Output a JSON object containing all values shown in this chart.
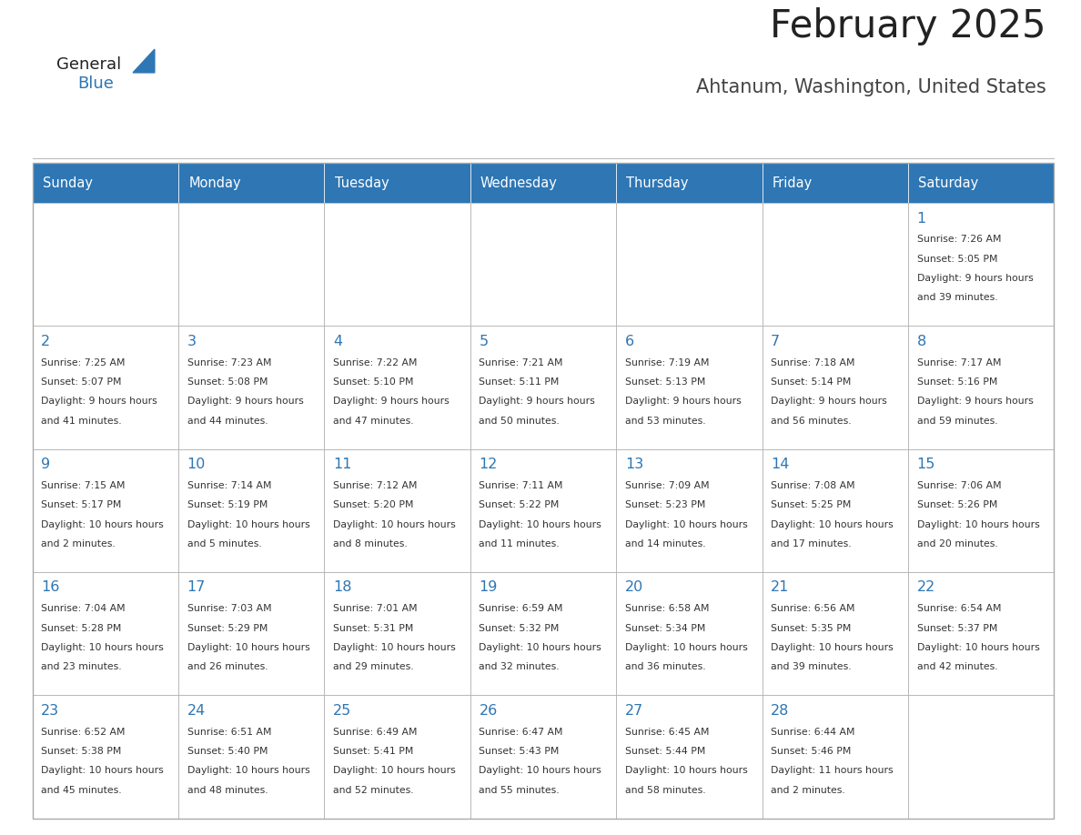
{
  "title": "February 2025",
  "subtitle": "Ahtanum, Washington, United States",
  "days_of_week": [
    "Sunday",
    "Monday",
    "Tuesday",
    "Wednesday",
    "Thursday",
    "Friday",
    "Saturday"
  ],
  "header_bg": "#2E76B4",
  "header_text": "#FFFFFF",
  "cell_bg": "#FFFFFF",
  "cell_border": "#AAAAAA",
  "day_number_color": "#2E76B4",
  "info_text_color": "#333333",
  "title_color": "#222222",
  "subtitle_color": "#444444",
  "general_blue_color": "#2E76B4",
  "logo_text_color": "#222222",
  "calendar_data": [
    [
      null,
      null,
      null,
      null,
      null,
      null,
      {
        "day": 1,
        "sunrise": "7:26 AM",
        "sunset": "5:05 PM",
        "daylight": "9 hours and 39 minutes."
      }
    ],
    [
      {
        "day": 2,
        "sunrise": "7:25 AM",
        "sunset": "5:07 PM",
        "daylight": "9 hours and 41 minutes."
      },
      {
        "day": 3,
        "sunrise": "7:23 AM",
        "sunset": "5:08 PM",
        "daylight": "9 hours and 44 minutes."
      },
      {
        "day": 4,
        "sunrise": "7:22 AM",
        "sunset": "5:10 PM",
        "daylight": "9 hours and 47 minutes."
      },
      {
        "day": 5,
        "sunrise": "7:21 AM",
        "sunset": "5:11 PM",
        "daylight": "9 hours and 50 minutes."
      },
      {
        "day": 6,
        "sunrise": "7:19 AM",
        "sunset": "5:13 PM",
        "daylight": "9 hours and 53 minutes."
      },
      {
        "day": 7,
        "sunrise": "7:18 AM",
        "sunset": "5:14 PM",
        "daylight": "9 hours and 56 minutes."
      },
      {
        "day": 8,
        "sunrise": "7:17 AM",
        "sunset": "5:16 PM",
        "daylight": "9 hours and 59 minutes."
      }
    ],
    [
      {
        "day": 9,
        "sunrise": "7:15 AM",
        "sunset": "5:17 PM",
        "daylight": "10 hours and 2 minutes."
      },
      {
        "day": 10,
        "sunrise": "7:14 AM",
        "sunset": "5:19 PM",
        "daylight": "10 hours and 5 minutes."
      },
      {
        "day": 11,
        "sunrise": "7:12 AM",
        "sunset": "5:20 PM",
        "daylight": "10 hours and 8 minutes."
      },
      {
        "day": 12,
        "sunrise": "7:11 AM",
        "sunset": "5:22 PM",
        "daylight": "10 hours and 11 minutes."
      },
      {
        "day": 13,
        "sunrise": "7:09 AM",
        "sunset": "5:23 PM",
        "daylight": "10 hours and 14 minutes."
      },
      {
        "day": 14,
        "sunrise": "7:08 AM",
        "sunset": "5:25 PM",
        "daylight": "10 hours and 17 minutes."
      },
      {
        "day": 15,
        "sunrise": "7:06 AM",
        "sunset": "5:26 PM",
        "daylight": "10 hours and 20 minutes."
      }
    ],
    [
      {
        "day": 16,
        "sunrise": "7:04 AM",
        "sunset": "5:28 PM",
        "daylight": "10 hours and 23 minutes."
      },
      {
        "day": 17,
        "sunrise": "7:03 AM",
        "sunset": "5:29 PM",
        "daylight": "10 hours and 26 minutes."
      },
      {
        "day": 18,
        "sunrise": "7:01 AM",
        "sunset": "5:31 PM",
        "daylight": "10 hours and 29 minutes."
      },
      {
        "day": 19,
        "sunrise": "6:59 AM",
        "sunset": "5:32 PM",
        "daylight": "10 hours and 32 minutes."
      },
      {
        "day": 20,
        "sunrise": "6:58 AM",
        "sunset": "5:34 PM",
        "daylight": "10 hours and 36 minutes."
      },
      {
        "day": 21,
        "sunrise": "6:56 AM",
        "sunset": "5:35 PM",
        "daylight": "10 hours and 39 minutes."
      },
      {
        "day": 22,
        "sunrise": "6:54 AM",
        "sunset": "5:37 PM",
        "daylight": "10 hours and 42 minutes."
      }
    ],
    [
      {
        "day": 23,
        "sunrise": "6:52 AM",
        "sunset": "5:38 PM",
        "daylight": "10 hours and 45 minutes."
      },
      {
        "day": 24,
        "sunrise": "6:51 AM",
        "sunset": "5:40 PM",
        "daylight": "10 hours and 48 minutes."
      },
      {
        "day": 25,
        "sunrise": "6:49 AM",
        "sunset": "5:41 PM",
        "daylight": "10 hours and 52 minutes."
      },
      {
        "day": 26,
        "sunrise": "6:47 AM",
        "sunset": "5:43 PM",
        "daylight": "10 hours and 55 minutes."
      },
      {
        "day": 27,
        "sunrise": "6:45 AM",
        "sunset": "5:44 PM",
        "daylight": "10 hours and 58 minutes."
      },
      {
        "day": 28,
        "sunrise": "6:44 AM",
        "sunset": "5:46 PM",
        "daylight": "11 hours and 2 minutes."
      },
      null
    ]
  ]
}
